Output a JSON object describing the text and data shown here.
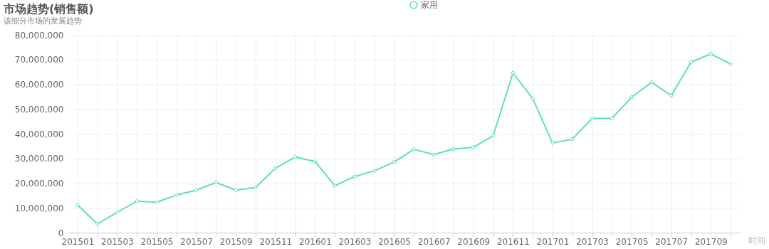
{
  "chart_data": {
    "type": "line",
    "title": "市场趋势(销售额)",
    "subtitle": "该细分市场的发展趋势",
    "xlabel": "时间",
    "categories": [
      "201501",
      null,
      "201503",
      null,
      "201505",
      null,
      "201507",
      null,
      "201509",
      null,
      "201511",
      null,
      "201601",
      null,
      "201603",
      null,
      "201605",
      null,
      "201607",
      null,
      "201609",
      null,
      "201611",
      null,
      "201701",
      null,
      "201703",
      null,
      "201705",
      null,
      "201707",
      null,
      "201709",
      null
    ],
    "series": [
      {
        "name": "家用",
        "color": "#5fe0b6",
        "values": [
          11200000,
          3500000,
          8200000,
          12700000,
          12300000,
          15200000,
          17200000,
          20300000,
          17200000,
          18300000,
          26000000,
          30600000,
          28800000,
          19000000,
          22700000,
          25000000,
          28600000,
          33700000,
          31600000,
          33800000,
          34500000,
          39200000,
          64600000,
          54200000,
          36300000,
          37800000,
          46200000,
          46200000,
          54800000,
          60800000,
          55500000,
          69000000,
          72300000,
          68200000
        ]
      }
    ],
    "ylim": [
      0,
      80000000
    ],
    "yticks": [
      0,
      {
        "value": 10000000,
        "label": "10,000,000"
      },
      {
        "value": 20000000,
        "label": "20,000,000"
      },
      {
        "value": 30000000,
        "label": "30,000,000"
      },
      {
        "value": 40000000,
        "label": "40,000,000"
      },
      {
        "value": 50000000,
        "label": "50,000,000"
      },
      {
        "value": 60000000,
        "label": "60,000,000"
      },
      {
        "value": 70000000,
        "label": "70,000,000"
      },
      {
        "value": 80000000,
        "label": "80,000,000"
      }
    ],
    "grid": true,
    "legend": "top",
    "marker": "circle",
    "line_style": "solid"
  }
}
